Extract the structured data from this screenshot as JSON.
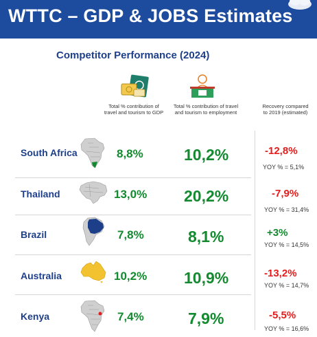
{
  "header": {
    "title": "WTTC – GDP & JOBS Estimates"
  },
  "subtitle": "Competitor Performance (2024)",
  "columns": {
    "gdp_label_1": "Total % contribution of",
    "gdp_label_2": "travel and tourism to GDP",
    "emp_label_1": "Total % contribution of travel",
    "emp_label_2": "and tourism to employment",
    "rec_label_1": "Recovery compared",
    "rec_label_2": "to 2019 (estimated)"
  },
  "colors": {
    "header": "#1d4b9e",
    "green": "#138a2f",
    "red": "#e41c1c",
    "navy": "#1d3f8a"
  },
  "rows": [
    {
      "country": "South Africa",
      "gdp": "8,8%",
      "employment": "10,2%",
      "recovery": "-12,8%",
      "recovery_color": "#e41c1c",
      "yoy": "YOY % = 5,1%",
      "map_icon": "south-africa-map-icon"
    },
    {
      "country": "Thailand",
      "gdp": "13,0%",
      "employment": "20,2%",
      "recovery": "-7,9%",
      "recovery_color": "#e41c1c",
      "yoy": "YOY % = 31,4%",
      "map_icon": "thailand-map-icon"
    },
    {
      "country": "Brazil",
      "gdp": "7,8%",
      "employment": "8,1%",
      "recovery": "+3%",
      "recovery_color": "#138a2f",
      "yoy": "YOY % = 14,5%",
      "map_icon": "brazil-map-icon"
    },
    {
      "country": "Australia",
      "gdp": "10,2%",
      "employment": "10,9%",
      "recovery": "-13,2%",
      "recovery_color": "#e41c1c",
      "yoy": "YOY % =  14,7%",
      "map_icon": "australia-map-icon"
    },
    {
      "country": "Kenya",
      "gdp": "7,4%",
      "employment": "7,9%",
      "recovery": "-5,5%",
      "recovery_color": "#e41c1c",
      "yoy": "YOY % = 16,6%",
      "map_icon": "kenya-map-icon"
    }
  ]
}
